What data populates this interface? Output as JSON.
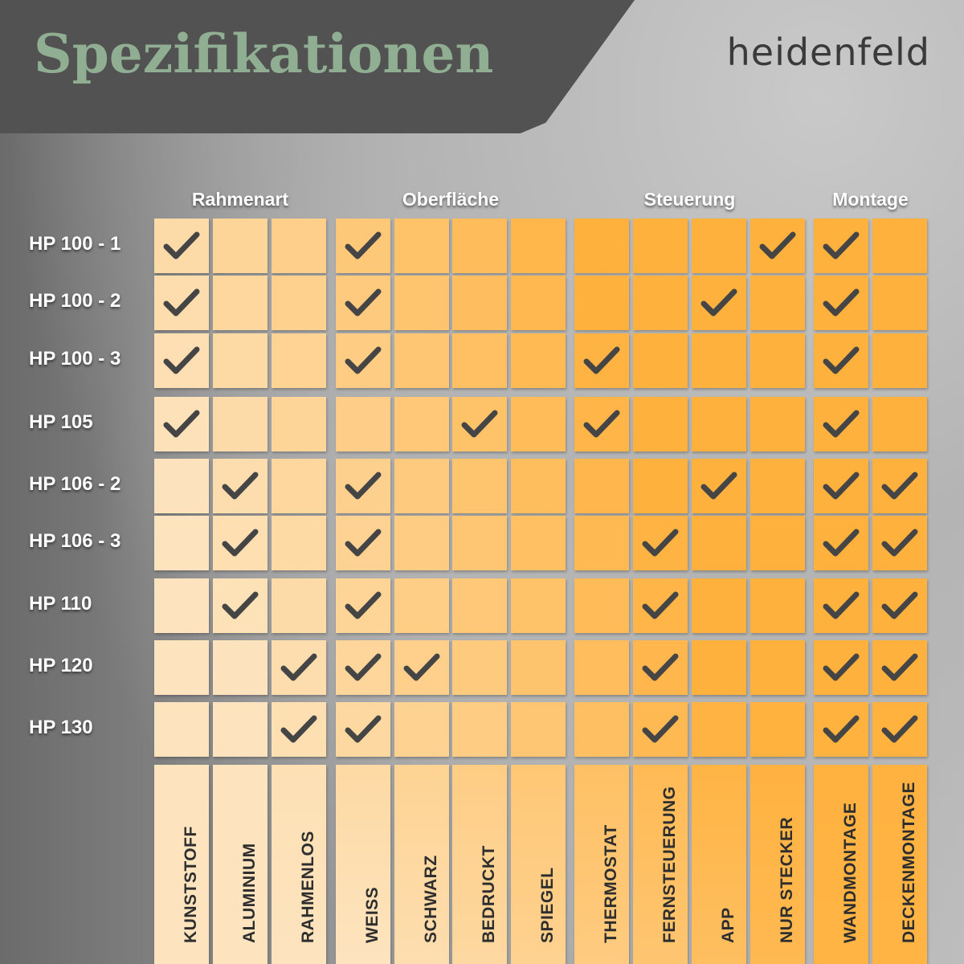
{
  "title": "Spezifikationen",
  "brand": "heidenfeld",
  "groups": [
    {
      "label": "Rahmenart",
      "start": 0,
      "span": 3
    },
    {
      "label": "Oberfläche",
      "start": 3,
      "span": 4
    },
    {
      "label": "Steuerung",
      "start": 7,
      "span": 4
    },
    {
      "label": "Montage",
      "start": 11,
      "span": 2
    }
  ],
  "columns": [
    "KUNSTSTOFF",
    "ALUMINIUM",
    "RAHMENLOS",
    "WEISS",
    "SCHWARZ",
    "BEDRUCKT",
    "SPIEGEL",
    "THERMOSTAT",
    "FERNSTEUERUNG",
    "APP",
    "NUR STECKER",
    "WANDMONTAGE",
    "DECKENMONTAGE"
  ],
  "rows": [
    {
      "label": "HP 100 - 1",
      "checks": [
        1,
        0,
        0,
        1,
        0,
        0,
        0,
        0,
        0,
        0,
        1,
        1,
        0
      ]
    },
    {
      "label": "HP 100 - 2",
      "checks": [
        1,
        0,
        0,
        1,
        0,
        0,
        0,
        0,
        0,
        1,
        0,
        1,
        0
      ]
    },
    {
      "label": "HP 100 - 3",
      "checks": [
        1,
        0,
        0,
        1,
        0,
        0,
        0,
        1,
        0,
        0,
        0,
        1,
        0
      ]
    },
    {
      "label": "HP 105",
      "checks": [
        1,
        0,
        0,
        0,
        0,
        1,
        0,
        1,
        0,
        0,
        0,
        1,
        0
      ]
    },
    {
      "label": "HP 106 - 2",
      "checks": [
        0,
        1,
        0,
        1,
        0,
        0,
        0,
        0,
        0,
        1,
        0,
        1,
        1
      ]
    },
    {
      "label": "HP 106 - 3",
      "checks": [
        0,
        1,
        0,
        1,
        0,
        0,
        0,
        0,
        1,
        0,
        0,
        1,
        1
      ]
    },
    {
      "label": "HP 110",
      "checks": [
        0,
        1,
        0,
        1,
        0,
        0,
        0,
        0,
        1,
        0,
        0,
        1,
        1
      ]
    },
    {
      "label": "HP 120",
      "checks": [
        0,
        0,
        1,
        1,
        1,
        0,
        0,
        0,
        1,
        0,
        0,
        1,
        1
      ]
    },
    {
      "label": "HP 130",
      "checks": [
        0,
        0,
        1,
        1,
        0,
        0,
        0,
        0,
        1,
        0,
        0,
        1,
        1
      ]
    }
  ],
  "icons": {
    "check": "check-icon"
  },
  "colors": {
    "banner": "#525252",
    "title": "#8fae92",
    "cell_light": "#fde4bf",
    "cell_dark": "#ffb13d",
    "check": "#454545"
  }
}
